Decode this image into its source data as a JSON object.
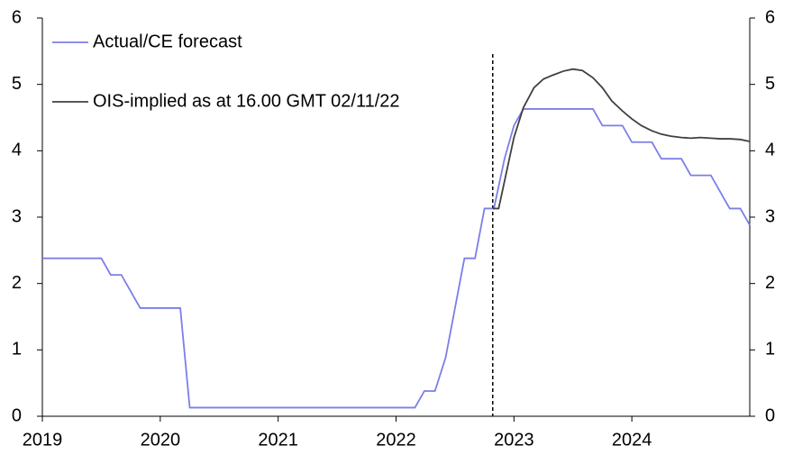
{
  "chart_data": {
    "type": "line",
    "xlim": [
      2019,
      2025
    ],
    "xticks": [
      2019,
      2020,
      2021,
      2022,
      2023,
      2024
    ],
    "ylim": [
      0,
      6
    ],
    "yticks": [
      0,
      1,
      2,
      3,
      4,
      5,
      6
    ],
    "y2lim": [
      0,
      6
    ],
    "y2ticks": [
      0,
      1,
      2,
      3,
      4,
      5,
      6
    ],
    "vertical_line_x": 2022.82,
    "legend": "upper left",
    "series": [
      {
        "name": "Actual/CE forecast",
        "color": "#7b7fe8",
        "x": [
          2019.0,
          2019.5,
          2019.58,
          2019.67,
          2019.83,
          2020.17,
          2020.25,
          2022.16,
          2022.24,
          2022.33,
          2022.42,
          2022.58,
          2022.67,
          2022.75,
          2022.83,
          2022.92,
          2023.0,
          2023.08,
          2023.67,
          2023.75,
          2023.92,
          2024.0,
          2024.17,
          2024.25,
          2024.42,
          2024.5,
          2024.67,
          2024.83,
          2024.92,
          2025.0
        ],
        "values": [
          2.38,
          2.38,
          2.13,
          2.13,
          1.63,
          1.63,
          0.13,
          0.13,
          0.38,
          0.38,
          0.88,
          2.38,
          2.38,
          3.13,
          3.13,
          3.88,
          4.38,
          4.63,
          4.63,
          4.38,
          4.38,
          4.13,
          4.13,
          3.88,
          3.88,
          3.63,
          3.63,
          3.13,
          3.13,
          2.88
        ]
      },
      {
        "name": "OIS-implied as at 16.00 GMT 02/11/22",
        "color": "#404040",
        "x": [
          2022.82,
          2022.87,
          2023.0,
          2023.08,
          2023.17,
          2023.25,
          2023.33,
          2023.42,
          2023.5,
          2023.58,
          2023.67,
          2023.75,
          2023.83,
          2023.92,
          2024.0,
          2024.08,
          2024.17,
          2024.25,
          2024.33,
          2024.42,
          2024.5,
          2024.58,
          2024.67,
          2024.75,
          2024.83,
          2024.92,
          2025.0
        ],
        "values": [
          3.13,
          3.13,
          4.2,
          4.65,
          4.95,
          5.08,
          5.14,
          5.2,
          5.23,
          5.21,
          5.1,
          4.95,
          4.75,
          4.6,
          4.48,
          4.38,
          4.3,
          4.25,
          4.22,
          4.2,
          4.19,
          4.2,
          4.19,
          4.18,
          4.18,
          4.17,
          4.14
        ]
      }
    ]
  }
}
